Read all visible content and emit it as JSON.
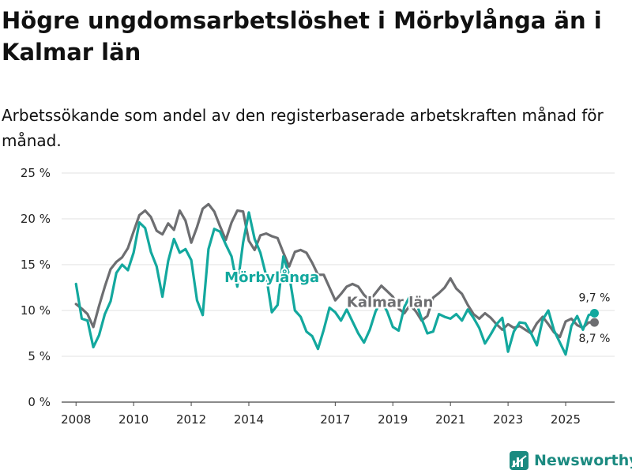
{
  "title": "Högre ungdomsarbetslöshet i Mörbylånga än i Kalmar län",
  "subtitle": "Arbetssökande som andel av den registerbaserade arbetskraften månad för månad.",
  "brand": "Newsworthy",
  "colors": {
    "morbylanga": "#13a89e",
    "kalmar": "#6d6e71",
    "brand": "#1b8a80",
    "grid": "#e0e0e0"
  },
  "chart_data": {
    "type": "line",
    "title": "Högre ungdomsarbetslöshet i Mörbylånga än i Kalmar län",
    "xlabel": "",
    "ylabel": "",
    "xlim": [
      2007.5,
      2026.7
    ],
    "ylim": [
      0,
      25
    ],
    "y_ticks": [
      0,
      5,
      10,
      15,
      20,
      25
    ],
    "y_tick_labels": [
      "0 %",
      "5 %",
      "10 %",
      "15 %",
      "20 %",
      "25 %"
    ],
    "x_ticks": [
      2008,
      2010,
      2012,
      2014,
      2017,
      2019,
      2021,
      2023,
      2025
    ],
    "x_tick_labels": [
      "2008",
      "2010",
      "2012",
      "2014",
      "2017",
      "2019",
      "2021",
      "2023",
      "2025"
    ],
    "grid": true,
    "series": [
      {
        "name": "Kalmar län",
        "label": "Kalmar län",
        "label_at": [
          2018.9,
          10.9
        ],
        "end_label": "8,7 %",
        "end_value": 8.7,
        "points": [
          [
            2008.0,
            10.7
          ],
          [
            2008.2,
            10.2
          ],
          [
            2008.4,
            9.6
          ],
          [
            2008.6,
            8.2
          ],
          [
            2008.8,
            10.5
          ],
          [
            2009.0,
            12.6
          ],
          [
            2009.2,
            14.5
          ],
          [
            2009.4,
            15.3
          ],
          [
            2009.6,
            15.8
          ],
          [
            2009.8,
            16.8
          ],
          [
            2010.0,
            18.6
          ],
          [
            2010.2,
            20.4
          ],
          [
            2010.4,
            20.9
          ],
          [
            2010.6,
            20.2
          ],
          [
            2010.8,
            18.7
          ],
          [
            2011.0,
            18.3
          ],
          [
            2011.2,
            19.5
          ],
          [
            2011.4,
            18.8
          ],
          [
            2011.6,
            20.9
          ],
          [
            2011.8,
            19.8
          ],
          [
            2012.0,
            17.4
          ],
          [
            2012.2,
            19.1
          ],
          [
            2012.4,
            21.1
          ],
          [
            2012.6,
            21.6
          ],
          [
            2012.8,
            20.8
          ],
          [
            2013.0,
            19.2
          ],
          [
            2013.2,
            17.7
          ],
          [
            2013.4,
            19.6
          ],
          [
            2013.6,
            20.9
          ],
          [
            2013.8,
            20.8
          ],
          [
            2014.0,
            17.6
          ],
          [
            2014.2,
            16.6
          ],
          [
            2014.4,
            18.2
          ],
          [
            2014.6,
            18.4
          ],
          [
            2014.8,
            18.1
          ],
          [
            2015.0,
            17.9
          ],
          [
            2015.2,
            16.3
          ],
          [
            2015.4,
            14.8
          ],
          [
            2015.6,
            16.4
          ],
          [
            2015.8,
            16.6
          ],
          [
            2016.0,
            16.3
          ],
          [
            2016.2,
            15.2
          ],
          [
            2016.4,
            13.9
          ],
          [
            2016.6,
            13.9
          ],
          [
            2016.8,
            12.5
          ],
          [
            2017.0,
            11.1
          ],
          [
            2017.2,
            11.8
          ],
          [
            2017.4,
            12.6
          ],
          [
            2017.6,
            12.9
          ],
          [
            2017.8,
            12.6
          ],
          [
            2018.0,
            11.7
          ],
          [
            2018.2,
            11.1
          ],
          [
            2018.4,
            11.9
          ],
          [
            2018.6,
            12.7
          ],
          [
            2018.8,
            12.1
          ],
          [
            2019.0,
            11.5
          ],
          [
            2019.2,
            10.2
          ],
          [
            2019.4,
            9.7
          ],
          [
            2019.6,
            10.6
          ],
          [
            2019.8,
            9.9
          ],
          [
            2020.0,
            8.9
          ],
          [
            2020.2,
            9.4
          ],
          [
            2020.4,
            11.4
          ],
          [
            2020.6,
            11.9
          ],
          [
            2020.8,
            12.5
          ],
          [
            2021.0,
            13.5
          ],
          [
            2021.2,
            12.4
          ],
          [
            2021.4,
            11.8
          ],
          [
            2021.6,
            10.6
          ],
          [
            2021.8,
            9.6
          ],
          [
            2022.0,
            9.1
          ],
          [
            2022.2,
            9.7
          ],
          [
            2022.4,
            9.2
          ],
          [
            2022.6,
            8.5
          ],
          [
            2022.8,
            7.9
          ],
          [
            2023.0,
            8.5
          ],
          [
            2023.2,
            8.1
          ],
          [
            2023.4,
            8.3
          ],
          [
            2023.6,
            7.9
          ],
          [
            2023.8,
            7.5
          ],
          [
            2024.0,
            8.6
          ],
          [
            2024.2,
            9.3
          ],
          [
            2024.4,
            8.5
          ],
          [
            2024.6,
            7.6
          ],
          [
            2024.8,
            7.1
          ],
          [
            2025.0,
            8.8
          ],
          [
            2025.2,
            9.1
          ],
          [
            2025.4,
            8.4
          ],
          [
            2025.6,
            8.1
          ],
          [
            2025.8,
            8.7
          ],
          [
            2026.0,
            8.7
          ]
        ]
      },
      {
        "name": "Mörbylånga",
        "label": "Mörbylånga",
        "label_at": [
          2014.8,
          13.6
        ],
        "end_label": "9,7 %",
        "end_value": 9.7,
        "points": [
          [
            2008.0,
            12.9
          ],
          [
            2008.2,
            9.1
          ],
          [
            2008.4,
            8.9
          ],
          [
            2008.6,
            6.0
          ],
          [
            2008.8,
            7.3
          ],
          [
            2009.0,
            9.6
          ],
          [
            2009.2,
            11.0
          ],
          [
            2009.4,
            14.1
          ],
          [
            2009.6,
            15.0
          ],
          [
            2009.8,
            14.4
          ],
          [
            2010.0,
            16.3
          ],
          [
            2010.2,
            19.6
          ],
          [
            2010.4,
            19.0
          ],
          [
            2010.6,
            16.4
          ],
          [
            2010.8,
            14.8
          ],
          [
            2011.0,
            11.5
          ],
          [
            2011.2,
            15.4
          ],
          [
            2011.4,
            17.8
          ],
          [
            2011.6,
            16.3
          ],
          [
            2011.8,
            16.7
          ],
          [
            2012.0,
            15.5
          ],
          [
            2012.2,
            11.1
          ],
          [
            2012.4,
            9.5
          ],
          [
            2012.6,
            16.7
          ],
          [
            2012.8,
            18.9
          ],
          [
            2013.0,
            18.6
          ],
          [
            2013.2,
            17.2
          ],
          [
            2013.4,
            15.9
          ],
          [
            2013.6,
            12.6
          ],
          [
            2013.8,
            17.4
          ],
          [
            2014.0,
            20.7
          ],
          [
            2014.2,
            17.8
          ],
          [
            2014.4,
            16.3
          ],
          [
            2014.6,
            13.8
          ],
          [
            2014.8,
            9.8
          ],
          [
            2015.0,
            10.6
          ],
          [
            2015.2,
            15.9
          ],
          [
            2015.4,
            13.9
          ],
          [
            2015.6,
            10.0
          ],
          [
            2015.8,
            9.3
          ],
          [
            2016.0,
            7.7
          ],
          [
            2016.2,
            7.2
          ],
          [
            2016.4,
            5.8
          ],
          [
            2016.6,
            7.9
          ],
          [
            2016.8,
            10.3
          ],
          [
            2017.0,
            9.8
          ],
          [
            2017.2,
            8.9
          ],
          [
            2017.4,
            10.1
          ],
          [
            2017.6,
            8.8
          ],
          [
            2017.8,
            7.5
          ],
          [
            2018.0,
            6.5
          ],
          [
            2018.2,
            7.9
          ],
          [
            2018.4,
            9.9
          ],
          [
            2018.6,
            11.1
          ],
          [
            2018.8,
            9.9
          ],
          [
            2019.0,
            8.2
          ],
          [
            2019.2,
            7.8
          ],
          [
            2019.4,
            10.4
          ],
          [
            2019.6,
            11.6
          ],
          [
            2019.8,
            11.0
          ],
          [
            2020.0,
            9.1
          ],
          [
            2020.2,
            7.5
          ],
          [
            2020.4,
            7.7
          ],
          [
            2020.6,
            9.6
          ],
          [
            2020.8,
            9.3
          ],
          [
            2021.0,
            9.1
          ],
          [
            2021.2,
            9.6
          ],
          [
            2021.4,
            8.9
          ],
          [
            2021.6,
            10.1
          ],
          [
            2021.8,
            9.2
          ],
          [
            2022.0,
            8.1
          ],
          [
            2022.2,
            6.4
          ],
          [
            2022.4,
            7.4
          ],
          [
            2022.6,
            8.5
          ],
          [
            2022.8,
            9.2
          ],
          [
            2023.0,
            5.5
          ],
          [
            2023.2,
            7.7
          ],
          [
            2023.4,
            8.7
          ],
          [
            2023.6,
            8.6
          ],
          [
            2023.8,
            7.5
          ],
          [
            2024.0,
            6.2
          ],
          [
            2024.2,
            9.0
          ],
          [
            2024.4,
            10.0
          ],
          [
            2024.6,
            7.8
          ],
          [
            2024.8,
            6.5
          ],
          [
            2025.0,
            5.2
          ],
          [
            2025.2,
            8.3
          ],
          [
            2025.4,
            9.4
          ],
          [
            2025.6,
            7.9
          ],
          [
            2025.8,
            9.5
          ],
          [
            2026.0,
            9.7
          ]
        ]
      }
    ]
  }
}
